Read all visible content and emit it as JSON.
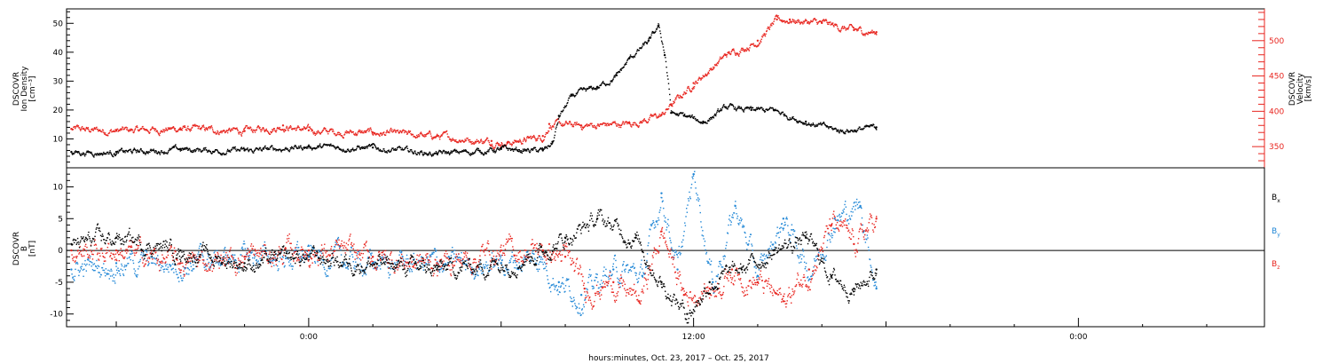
{
  "chart_data": [
    {
      "type": "scatter",
      "panel": "plasma",
      "ylabel_left": [
        "DSCOVR",
        "Ion Density",
        "[cm⁻³]"
      ],
      "ylabel_right": [
        "DSCOVR",
        "Velocity",
        "[km/s]"
      ],
      "ylim_left": [
        0,
        55
      ],
      "ylim_right": [
        320,
        545
      ],
      "yticks_left": [
        "10",
        "20",
        "30",
        "40",
        "50"
      ],
      "yticks_right": [
        "350",
        "400",
        "450",
        "500"
      ],
      "colors": {
        "density": "#000000",
        "velocity": "#e8251f"
      },
      "series": [
        {
          "name": "density",
          "axis": "left",
          "x": [
            -7.4,
            -6,
            -4,
            -2,
            0,
            2,
            4,
            6,
            7.3,
            7.6,
            7.8,
            8.2,
            9,
            9.6,
            10,
            10.6,
            10.9,
            11.1,
            11.3,
            11.7,
            12.3,
            13,
            13.8,
            14.5,
            15.5,
            16.5,
            17.7
          ],
          "y": [
            5.5,
            5.5,
            6.5,
            6,
            7.5,
            7,
            5,
            6.5,
            6,
            9,
            18,
            25,
            28,
            32,
            38,
            44,
            49,
            39,
            19,
            18,
            16,
            21,
            20,
            20,
            16,
            13,
            14
          ]
        },
        {
          "name": "velocity",
          "axis": "right",
          "x": [
            -7.4,
            -6,
            -4,
            -2,
            -0.8,
            0,
            2,
            4,
            5.7,
            6.2,
            7.3,
            7.5,
            8.5,
            10,
            11,
            11.3,
            12,
            13,
            14,
            14.6,
            15,
            16,
            17,
            17.7
          ],
          "y": [
            375,
            373,
            376,
            372,
            380,
            373,
            370,
            365,
            358,
            356,
            365,
            382,
            380,
            383,
            395,
            410,
            440,
            480,
            500,
            530,
            530,
            525,
            515,
            512
          ]
        }
      ]
    },
    {
      "type": "scatter",
      "panel": "magnetic",
      "ylabel_left": [
        "DSCOVR",
        "B",
        "[nT]"
      ],
      "ylim": [
        -12,
        13
      ],
      "yticks_left": [
        "-10",
        "-5",
        "0",
        "5",
        "10"
      ],
      "zero_line": true,
      "xticks": [
        "0:00",
        "12:00",
        "0:00"
      ],
      "xlabel": "hours:minutes, Oct. 23, 2017 – Oct. 25, 2017",
      "colors": {
        "Bx": "#000000",
        "By": "#1f86d6",
        "Bz": "#e8251f"
      },
      "legend": {
        "position": "right",
        "entries": [
          "Bx",
          "By",
          "Bz"
        ]
      },
      "series": [
        {
          "name": "Bx",
          "x": [
            -7.4,
            -6,
            -4,
            -2,
            0,
            2,
            4,
            6,
            7.3,
            8,
            9,
            10.2,
            11,
            11.8,
            12.5,
            13.5,
            14.5,
            15.5,
            16.3,
            17,
            17.7
          ],
          "y": [
            1,
            2,
            0,
            -2,
            -1,
            -2,
            -3,
            -2,
            0,
            2,
            5,
            2,
            -5,
            -10,
            -5,
            -3,
            0,
            2,
            -4,
            -6,
            -3
          ]
        },
        {
          "name": "By",
          "x": [
            -7.4,
            -6,
            -4,
            -2,
            0,
            2,
            4,
            6,
            7.2,
            7.8,
            8.5,
            9.5,
            10.4,
            11,
            11.5,
            12,
            12.6,
            13.3,
            14,
            14.8,
            15.6,
            16.4,
            17.2,
            17.7
          ],
          "y": [
            -3,
            -2,
            -2,
            -1,
            -1,
            -2,
            -2,
            -2,
            -1,
            -5,
            -7,
            -3,
            -4,
            9,
            -3,
            12,
            -5,
            7,
            -4,
            5,
            -3,
            5,
            7,
            -6
          ]
        },
        {
          "name": "Bz",
          "x": [
            -7.4,
            -6,
            -4,
            -2,
            0,
            2,
            4,
            6,
            7.3,
            8,
            8.6,
            9.5,
            10.3,
            11,
            11.7,
            12.5,
            13.2,
            14,
            14.8,
            15.6,
            16.3,
            17,
            17.7
          ],
          "y": [
            0,
            0,
            -2,
            -1,
            0,
            -1,
            -2,
            0,
            0,
            -1,
            -6,
            -5,
            -8,
            3,
            -7,
            -6,
            -3,
            -5,
            -8,
            -3,
            4,
            1,
            5
          ]
        }
      ]
    }
  ]
}
